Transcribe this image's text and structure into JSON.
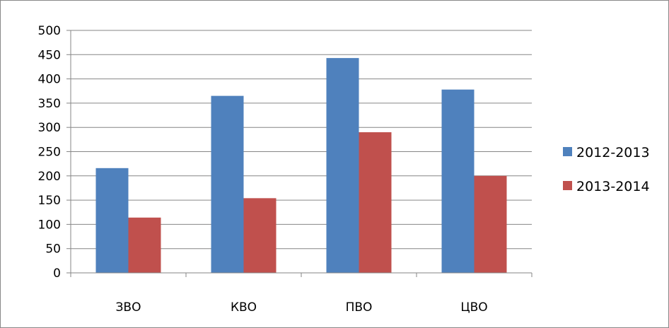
{
  "chart_data": {
    "type": "bar",
    "categories": [
      "ЗВО",
      "КВО",
      "ПВО",
      "ЦВО"
    ],
    "series": [
      {
        "name": "2012-2013",
        "values": [
          216,
          365,
          443,
          378
        ],
        "color": "#4f81bd"
      },
      {
        "name": "2013-2014",
        "values": [
          114,
          154,
          290,
          200
        ],
        "color": "#c0504d"
      }
    ],
    "ylim": [
      0,
      500
    ],
    "yticks": [
      0,
      50,
      100,
      150,
      200,
      250,
      300,
      350,
      400,
      450,
      500
    ],
    "grid": true,
    "legend": "right"
  }
}
